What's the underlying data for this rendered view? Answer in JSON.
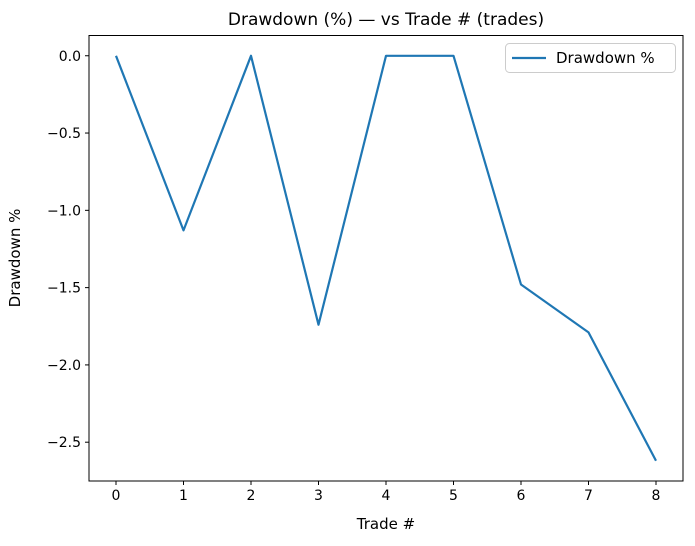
{
  "chart_data": {
    "type": "line",
    "title": "Drawdown (%) — vs Trade # (trades)",
    "xlabel": "Trade #",
    "ylabel": "Drawdown %",
    "x": [
      0,
      1,
      2,
      3,
      4,
      5,
      6,
      7,
      8
    ],
    "series": [
      {
        "name": "Drawdown %",
        "color": "#1f77b4",
        "values": [
          0.0,
          -1.13,
          0.0,
          -1.74,
          0.0,
          0.0,
          -1.48,
          -1.79,
          -2.62
        ]
      }
    ],
    "xlim": [
      -0.4,
      8.4
    ],
    "ylim": [
      -2.751,
      0.131
    ],
    "xtick_values": [
      0,
      1,
      2,
      3,
      4,
      5,
      6,
      7,
      8
    ],
    "xtick_labels": [
      "0",
      "1",
      "2",
      "3",
      "4",
      "5",
      "6",
      "7",
      "8"
    ],
    "ytick_values": [
      0.0,
      -0.5,
      -1.0,
      -1.5,
      -2.0,
      -2.5
    ],
    "ytick_labels": [
      "0.0",
      "−0.5",
      "−1.0",
      "−1.5",
      "−2.0",
      "−2.5"
    ],
    "grid": false,
    "legend_position": "top-right",
    "colors": {
      "line": "#1f77b4",
      "spine": "#000000",
      "text": "#000000",
      "legend_border": "#cccccc",
      "legend_bg": "#ffffff"
    }
  }
}
